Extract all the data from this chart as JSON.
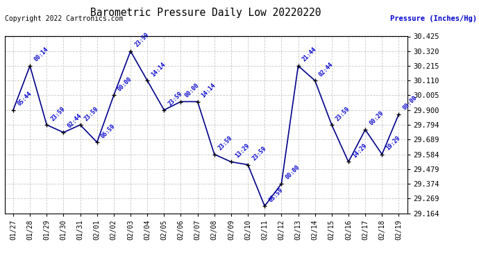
{
  "title": "Barometric Pressure Daily Low 20220220",
  "ylabel": "Pressure (Inches/Hg)",
  "copyright": "Copyright 2022 Cartronics.com",
  "dates": [
    "01/27",
    "01/28",
    "01/29",
    "01/30",
    "01/31",
    "02/01",
    "02/02",
    "02/03",
    "02/04",
    "02/05",
    "02/06",
    "02/07",
    "02/08",
    "02/09",
    "02/10",
    "02/11",
    "02/12",
    "02/13",
    "02/14",
    "02/15",
    "02/16",
    "02/17",
    "02/18",
    "02/19"
  ],
  "values": [
    29.9,
    30.215,
    29.794,
    29.74,
    29.794,
    29.67,
    30.005,
    30.32,
    30.11,
    29.9,
    29.96,
    29.96,
    29.584,
    29.53,
    29.51,
    29.215,
    29.374,
    30.215,
    30.11,
    29.794,
    29.53,
    29.76,
    29.584,
    29.87
  ],
  "annotations": [
    "05:44",
    "00:14",
    "23:59",
    "02:44",
    "23:59",
    "06:59",
    "00:00",
    "23:59",
    "14:14",
    "23:59",
    "00:00",
    "14:14",
    "23:59",
    "13:29",
    "23:59",
    "05:59",
    "00:00",
    "21:44",
    "02:44",
    "23:59",
    "14:29",
    "00:29",
    "19:29",
    "00:00"
  ],
  "ylim": [
    29.164,
    30.425
  ],
  "yticks": [
    29.164,
    29.269,
    29.374,
    29.479,
    29.584,
    29.689,
    29.794,
    29.9,
    30.005,
    30.11,
    30.215,
    30.32,
    30.425
  ],
  "line_color": "#00008B",
  "marker_color": "#000000",
  "annotation_color": "#0000CD",
  "title_color": "#000000",
  "copyright_color": "#000000",
  "ylabel_color": "#0000CD",
  "bg_color": "#ffffff",
  "grid_color": "#c8c8c8"
}
